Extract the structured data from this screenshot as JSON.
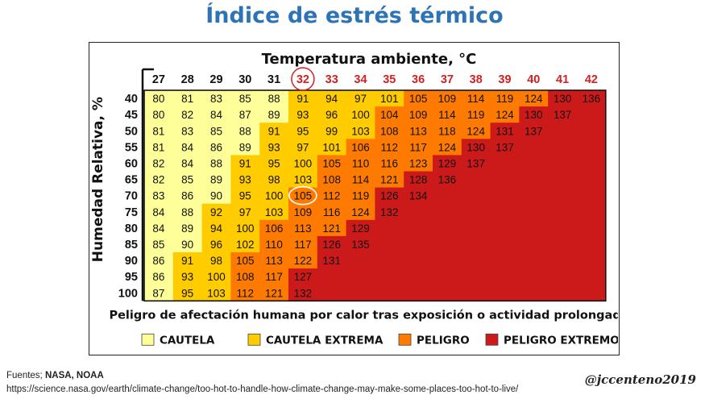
{
  "page": {
    "title": "Índice de estrés térmico",
    "sources_label": "Fuentes;",
    "sources_orgs": "NASA, NOAA",
    "sources_url": "https://science.nasa.gov/earth/climate-change/too-hot-to-handle-how-climate-change-may-make-some-places-too-hot-to-live/",
    "author": "@jccenteno2019"
  },
  "colors": {
    "cautela": "#ffff99",
    "cautela_extrema": "#ffcc00",
    "peligro": "#ff7a00",
    "peligro_extremo": "#cc1a1a",
    "hot_header": "#d42020",
    "grid_text": "#111111",
    "highlight_circle": "#ffffff"
  },
  "chart_data": {
    "type": "heatmap",
    "title": "Temperatura ambiente, °C",
    "xlabel": "Temperatura ambiente, °C",
    "ylabel": "Humedad Relativa, %",
    "subtitle": "Peligro de afectación humana por calor tras exposición o actividad prolongada",
    "x": [
      27,
      28,
      29,
      30,
      31,
      32,
      33,
      34,
      35,
      36,
      37,
      38,
      39,
      40,
      41,
      42
    ],
    "y": [
      40,
      45,
      50,
      55,
      60,
      65,
      70,
      75,
      80,
      85,
      90,
      95,
      100
    ],
    "red_header_from": 32,
    "circled_header": 32,
    "circled_cell": {
      "humidity": 70,
      "temperature": 32,
      "value": 105
    },
    "values": [
      [
        80,
        81,
        83,
        85,
        88,
        91,
        94,
        97,
        101,
        105,
        109,
        114,
        119,
        124,
        130,
        136
      ],
      [
        80,
        82,
        84,
        87,
        89,
        93,
        96,
        100,
        104,
        109,
        114,
        119,
        124,
        130,
        137,
        null
      ],
      [
        81,
        83,
        85,
        88,
        91,
        95,
        99,
        103,
        108,
        113,
        118,
        124,
        131,
        137,
        null,
        null
      ],
      [
        81,
        84,
        86,
        89,
        93,
        97,
        101,
        106,
        112,
        117,
        124,
        130,
        137,
        null,
        null,
        null
      ],
      [
        82,
        84,
        88,
        91,
        95,
        100,
        105,
        110,
        116,
        123,
        129,
        137,
        null,
        null,
        null,
        null
      ],
      [
        82,
        85,
        89,
        93,
        98,
        103,
        108,
        114,
        121,
        128,
        136,
        null,
        null,
        null,
        null,
        null
      ],
      [
        83,
        86,
        90,
        95,
        100,
        105,
        112,
        119,
        126,
        134,
        null,
        null,
        null,
        null,
        null,
        null
      ],
      [
        84,
        88,
        92,
        97,
        103,
        109,
        116,
        124,
        132,
        null,
        null,
        null,
        null,
        null,
        null,
        null
      ],
      [
        84,
        89,
        94,
        100,
        106,
        113,
        121,
        129,
        null,
        null,
        null,
        null,
        null,
        null,
        null,
        null
      ],
      [
        85,
        90,
        96,
        102,
        110,
        117,
        126,
        135,
        null,
        null,
        null,
        null,
        null,
        null,
        null,
        null
      ],
      [
        86,
        91,
        98,
        105,
        113,
        122,
        131,
        null,
        null,
        null,
        null,
        null,
        null,
        null,
        null,
        null
      ],
      [
        86,
        93,
        100,
        108,
        117,
        127,
        null,
        null,
        null,
        null,
        null,
        null,
        null,
        null,
        null,
        null
      ],
      [
        87,
        95,
        103,
        112,
        121,
        132,
        null,
        null,
        null,
        null,
        null,
        null,
        null,
        null,
        null,
        null
      ]
    ],
    "categories": [
      {
        "name": "CAUTELA",
        "min": 80,
        "max": 90,
        "color_key": "cautela"
      },
      {
        "name": "CAUTELA EXTREMA",
        "min": 91,
        "max": 103,
        "color_key": "cautela_extrema"
      },
      {
        "name": "PELIGRO",
        "min": 104,
        "max": 125,
        "color_key": "peligro"
      },
      {
        "name": "PELIGRO EXTREMO",
        "min": 126,
        "max": 200,
        "color_key": "peligro_extremo"
      }
    ],
    "legend": [
      {
        "label": "CAUTELA",
        "color_key": "cautela"
      },
      {
        "label": "CAUTELA EXTREMA",
        "color_key": "cautela_extrema"
      },
      {
        "label": "PELIGRO",
        "color_key": "peligro"
      },
      {
        "label": "PELIGRO EXTREMO",
        "color_key": "peligro_extremo"
      }
    ],
    "legend_position": "bottom"
  }
}
